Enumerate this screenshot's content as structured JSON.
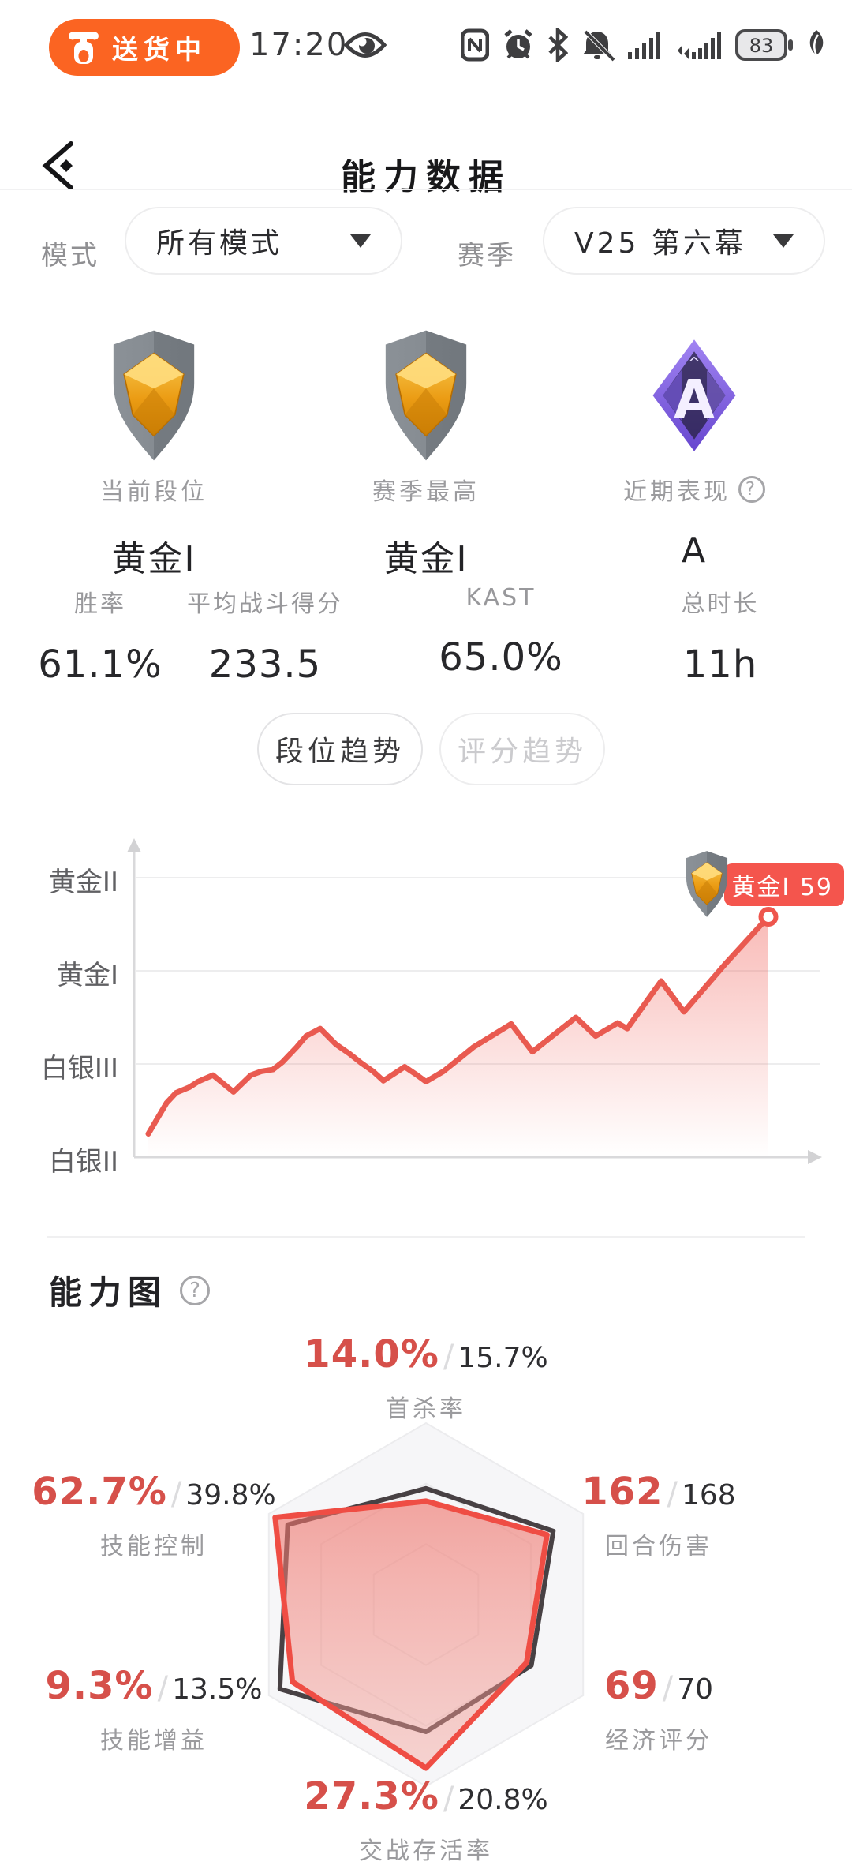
{
  "status_bar": {
    "pill_label": "送货中",
    "time": "17:20",
    "battery_level": "83",
    "icon_names": [
      "scooter-icon",
      "eye-icon",
      "nfc-icon",
      "alarm-icon",
      "bluetooth-icon",
      "mute-bell-icon",
      "signal-icon",
      "mobile-signal-icon",
      "battery-icon",
      "power-save-icon"
    ]
  },
  "header": {
    "title": "能力数据"
  },
  "filters": {
    "mode_label": "模式",
    "mode_value": "所有模式",
    "season_label": "赛季",
    "season_value": "V25 第六幕"
  },
  "rank_cards": [
    {
      "label": "当前段位",
      "value": "黄金I",
      "icon": "rank-shield-gold"
    },
    {
      "label": "赛季最高",
      "value": "黄金I",
      "icon": "rank-shield-gold"
    },
    {
      "label": "近期表现",
      "value": "A",
      "icon": "grade-a-diamond",
      "has_help": true
    }
  ],
  "stats": [
    {
      "label": "胜率",
      "value": "61.1%"
    },
    {
      "label": "平均战斗得分",
      "value": "233.5"
    },
    {
      "label": "KAST",
      "value": "65.0%"
    },
    {
      "label": "总时长",
      "value": "11h"
    }
  ],
  "trend_tabs": [
    {
      "label": "段位趋势",
      "active": true
    },
    {
      "label": "评分趋势",
      "active": false
    }
  ],
  "rank_trend_chart": {
    "y_labels": [
      "黄金II",
      "黄金I",
      "白银III",
      "白银II"
    ],
    "badge_label": "黄金I 59"
  },
  "ability_section": {
    "title": "能力图",
    "separator": "/",
    "axes": [
      {
        "name": "首杀率",
        "player": "14.0%",
        "compare": "15.7%"
      },
      {
        "name": "回合伤害",
        "player": "162",
        "compare": "168"
      },
      {
        "name": "经济评分",
        "player": "69",
        "compare": "70"
      },
      {
        "name": "交战存活率",
        "player": "27.3%",
        "compare": "20.8%"
      },
      {
        "name": "技能增益",
        "player": "9.3%",
        "compare": "13.5%"
      },
      {
        "name": "技能控制",
        "player": "62.7%",
        "compare": "39.8%"
      }
    ]
  },
  "misc": {
    "help_glyph": "?"
  },
  "colors": {
    "accent_orange": "#FB6422",
    "accent_red": "#EE544B",
    "value_red": "#D6504A",
    "dark_text": "#26262A",
    "gray_label": "#9B9B9E",
    "grid": "#EDEDEE",
    "compare_stroke": "#383134"
  },
  "chart_data": [
    {
      "id": "rank_trend",
      "type": "line",
      "title": "段位趋势",
      "y_tick_labels": [
        "黄金II",
        "黄金I",
        "白银III",
        "白银II"
      ],
      "y_unit": "rank tier (0 = 白银II baseline, 1.0 per tier gridline)",
      "ylim": [
        0,
        3.35
      ],
      "grid": true,
      "end_marker": true,
      "end_badge": "黄金I 59",
      "points": [
        [
          188,
          0.25
        ],
        [
          211,
          0.58
        ],
        [
          223,
          0.69
        ],
        [
          240,
          0.75
        ],
        [
          251,
          0.81
        ],
        [
          270,
          0.88
        ],
        [
          296,
          0.7
        ],
        [
          318,
          0.88
        ],
        [
          331,
          0.92
        ],
        [
          346,
          0.94
        ],
        [
          358,
          1.02
        ],
        [
          376,
          1.18
        ],
        [
          388,
          1.3
        ],
        [
          406,
          1.38
        ],
        [
          426,
          1.21
        ],
        [
          443,
          1.11
        ],
        [
          458,
          1.01
        ],
        [
          473,
          0.92
        ],
        [
          486,
          0.82
        ],
        [
          513,
          0.97
        ],
        [
          527,
          0.89
        ],
        [
          540,
          0.81
        ],
        [
          562,
          0.92
        ],
        [
          584,
          1.07
        ],
        [
          600,
          1.18
        ],
        [
          648,
          1.43
        ],
        [
          675,
          1.13
        ],
        [
          700,
          1.3
        ],
        [
          730,
          1.5
        ],
        [
          755,
          1.3
        ],
        [
          783,
          1.44
        ],
        [
          795,
          1.38
        ],
        [
          838,
          1.89
        ],
        [
          867,
          1.56
        ],
        [
          920,
          2.08
        ],
        [
          974,
          2.58
        ]
      ]
    },
    {
      "id": "ability_radar",
      "type": "radar",
      "axes": [
        "首杀率",
        "回合伤害",
        "经济评分",
        "交战存活率",
        "技能增益",
        "技能控制"
      ],
      "rings": [
        1,
        0.667,
        0.333
      ],
      "series": [
        {
          "name": "player",
          "display": [
            "14.0%",
            "162",
            "69",
            "27.3%",
            "9.3%",
            "62.7%"
          ],
          "radii": [
            0.57,
            0.77,
            0.64,
            0.9,
            0.85,
            0.96
          ],
          "color": "#EF4D44"
        },
        {
          "name": "compare",
          "display": [
            "15.7%",
            "168",
            "70",
            "20.8%",
            "13.5%",
            "39.8%"
          ],
          "radii": [
            0.64,
            0.81,
            0.67,
            0.7,
            0.93,
            0.88
          ],
          "color": "#383134"
        }
      ]
    }
  ]
}
